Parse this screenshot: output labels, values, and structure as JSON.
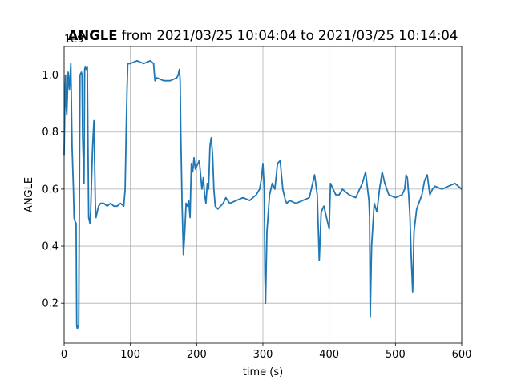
{
  "chart_data": {
    "type": "line",
    "title_bold": "ANGLE",
    "title_rest": " from 2021/03/25 10:04:04 to 2021/03/25 10:14:04",
    "xlabel": "time (s)",
    "ylabel": "ANGLE",
    "offset_text": "1e9",
    "xlim": [
      0,
      600
    ],
    "ylim": [
      0.06,
      1.1
    ],
    "x_ticks": [
      0,
      100,
      200,
      300,
      400,
      500,
      600
    ],
    "x_tick_labels": [
      "0",
      "100",
      "200",
      "300",
      "400",
      "500",
      "600"
    ],
    "y_ticks": [
      0.2,
      0.4,
      0.6,
      0.8,
      1.0
    ],
    "y_tick_labels": [
      "0.2",
      "0.4",
      "0.6",
      "0.8",
      "1.0"
    ],
    "grid": true,
    "line_color": "#1f77b4",
    "series": [
      {
        "x": [
          0,
          1,
          2,
          3,
          4,
          6,
          8,
          10,
          12,
          14,
          15,
          16,
          18,
          19,
          20,
          21,
          22,
          24,
          26,
          27,
          28,
          30,
          31,
          32,
          33,
          35,
          37,
          39,
          40,
          41,
          43,
          45,
          46,
          47,
          48,
          50,
          52,
          55,
          60,
          65,
          70,
          75,
          80,
          85,
          90,
          92,
          94,
          95,
          96,
          100,
          110,
          120,
          130,
          135,
          137,
          140,
          150,
          160,
          170,
          172,
          174,
          175,
          176,
          178,
          180,
          182,
          184,
          186,
          188,
          190,
          192,
          194,
          196,
          198,
          200,
          204,
          208,
          210,
          212,
          214,
          216,
          218,
          220,
          222,
          224,
          226,
          228,
          232,
          236,
          240,
          244,
          250,
          260,
          270,
          280,
          290,
          295,
          298,
          300,
          302,
          303,
          304,
          306,
          310,
          314,
          318,
          322,
          326,
          330,
          334,
          336,
          340,
          350,
          360,
          370,
          378,
          382,
          385,
          388,
          392,
          396,
          400,
          402,
          406,
          410,
          415,
          420,
          430,
          440,
          450,
          455,
          458,
          460,
          461,
          462,
          464,
          468,
          472,
          476,
          480,
          484,
          490,
          500,
          510,
          514,
          516,
          518,
          520,
          522,
          524,
          526,
          528,
          532,
          540,
          544,
          548,
          552,
          556,
          560,
          570,
          580,
          590,
          600
        ],
        "y": [
          0.72,
          0.88,
          1.0,
          0.9,
          0.86,
          1.01,
          0.95,
          1.04,
          0.75,
          0.6,
          0.5,
          0.49,
          0.48,
          0.12,
          0.11,
          0.12,
          0.12,
          1.0,
          1.01,
          1.0,
          0.78,
          0.62,
          1.02,
          1.03,
          1.02,
          1.03,
          0.5,
          0.48,
          0.52,
          0.6,
          0.75,
          0.84,
          0.7,
          0.55,
          0.5,
          0.52,
          0.54,
          0.55,
          0.55,
          0.54,
          0.55,
          0.54,
          0.54,
          0.55,
          0.54,
          0.6,
          0.85,
          0.95,
          1.04,
          1.04,
          1.05,
          1.04,
          1.05,
          1.04,
          0.98,
          0.99,
          0.98,
          0.98,
          0.99,
          1.0,
          1.02,
          0.98,
          0.8,
          0.55,
          0.37,
          0.45,
          0.55,
          0.54,
          0.56,
          0.5,
          0.69,
          0.66,
          0.71,
          0.67,
          0.68,
          0.7,
          0.6,
          0.64,
          0.58,
          0.55,
          0.62,
          0.6,
          0.75,
          0.78,
          0.72,
          0.6,
          0.54,
          0.53,
          0.54,
          0.55,
          0.57,
          0.55,
          0.56,
          0.57,
          0.56,
          0.58,
          0.6,
          0.64,
          0.69,
          0.6,
          0.3,
          0.2,
          0.45,
          0.58,
          0.62,
          0.6,
          0.69,
          0.7,
          0.6,
          0.56,
          0.55,
          0.56,
          0.55,
          0.56,
          0.57,
          0.65,
          0.58,
          0.35,
          0.52,
          0.54,
          0.5,
          0.46,
          0.62,
          0.6,
          0.58,
          0.58,
          0.6,
          0.58,
          0.57,
          0.62,
          0.66,
          0.6,
          0.56,
          0.5,
          0.15,
          0.4,
          0.55,
          0.52,
          0.6,
          0.66,
          0.62,
          0.58,
          0.57,
          0.58,
          0.6,
          0.65,
          0.64,
          0.58,
          0.5,
          0.35,
          0.24,
          0.45,
          0.53,
          0.58,
          0.63,
          0.65,
          0.58,
          0.6,
          0.61,
          0.6,
          0.61,
          0.62,
          0.6
        ]
      }
    ]
  }
}
